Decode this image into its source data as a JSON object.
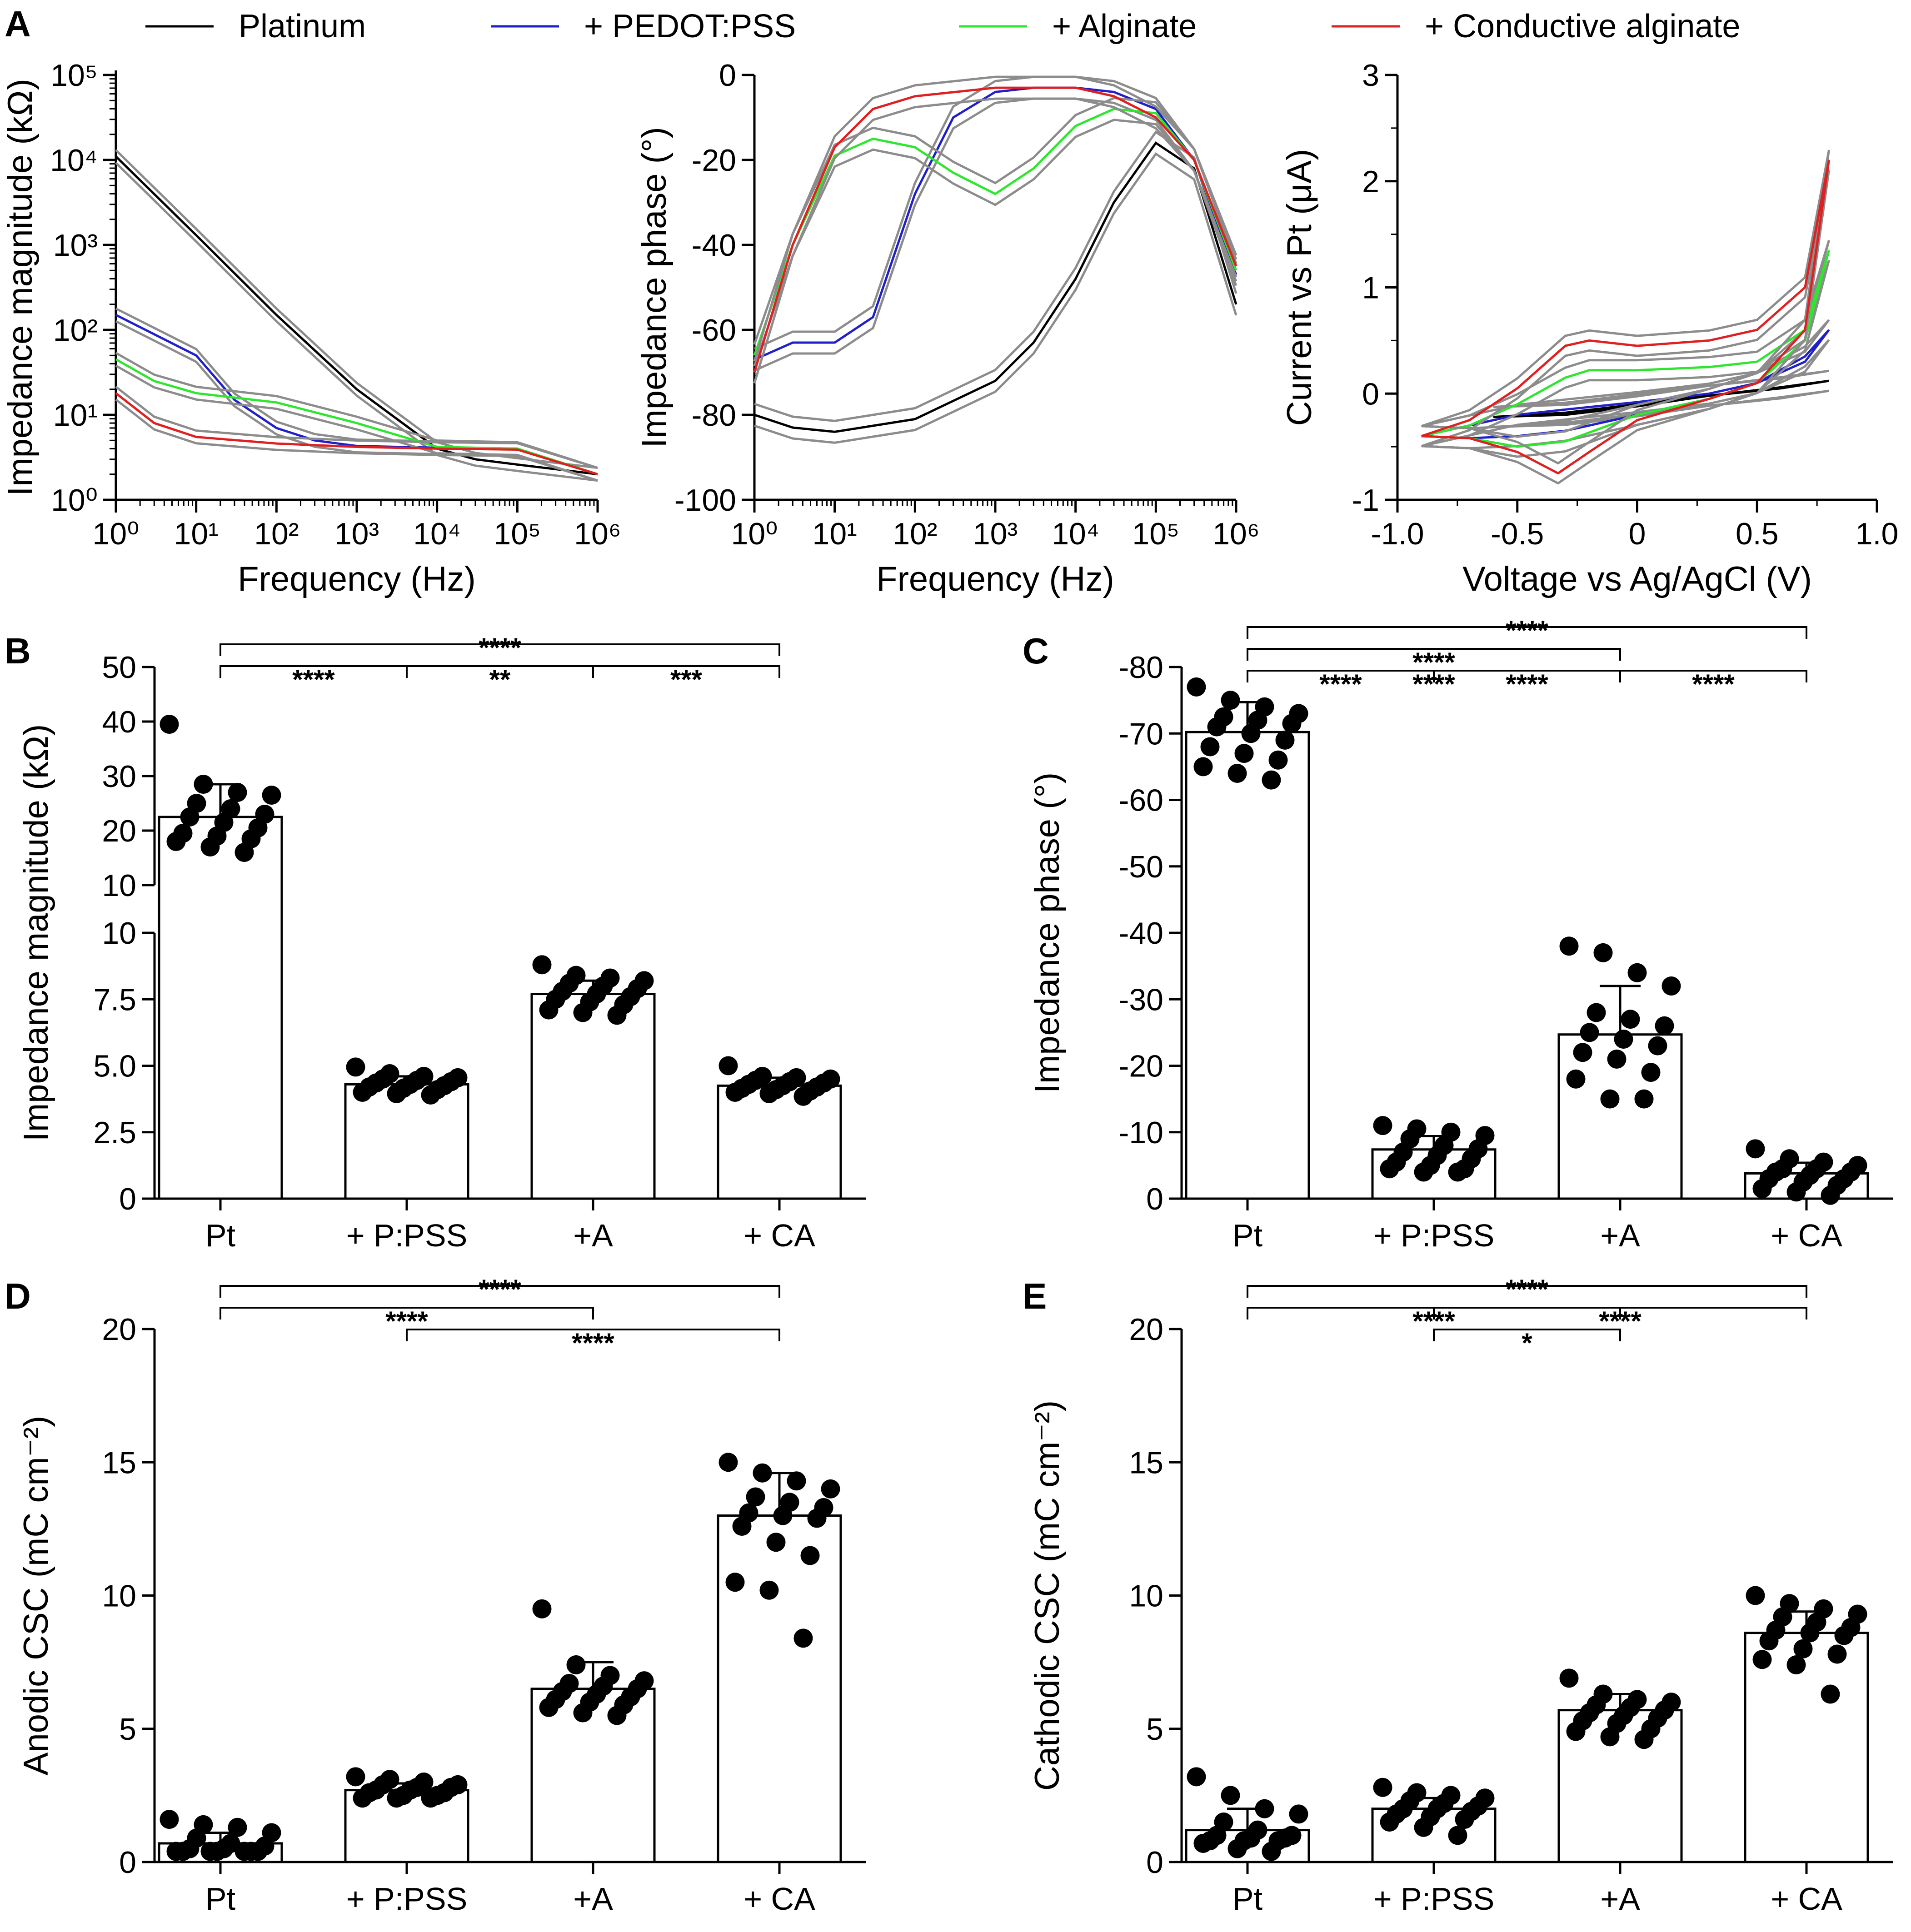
{
  "colors": {
    "platinum": "#000000",
    "pedot": "#1f1fcc",
    "alginate": "#2ee62e",
    "conductive": "#e02020",
    "bound": "#8c8c8c"
  },
  "legend": [
    {
      "label": "Platinum",
      "color": "#000000"
    },
    {
      "label": "+ PEDOT:PSS",
      "color": "#1f1fcc"
    },
    {
      "label": "+ Alginate",
      "color": "#2ee62e"
    },
    {
      "label": "+ Conductive alginate",
      "color": "#e02020"
    }
  ],
  "chart_data": [
    {
      "panel": "A",
      "type": "line",
      "xscale": "log",
      "yscale": "log",
      "xlabel": "Frequency (Hz)",
      "ylabel": "Impedance magnitude (kΩ)",
      "xlim": [
        1,
        1000000
      ],
      "ylim": [
        1,
        100000
      ],
      "x_ticks": [
        "10⁰",
        "10¹",
        "10²",
        "10³",
        "10⁴",
        "10⁵",
        "10⁶"
      ],
      "y_ticks": [
        "10⁰",
        "10¹",
        "10²",
        "10³",
        "10⁴",
        "10⁵"
      ],
      "series": [
        {
          "name": "Platinum",
          "x": [
            1,
            10,
            100,
            1000,
            10000,
            30000,
            100000,
            1000000
          ],
          "y": [
            11000,
            1300,
            150,
            20,
            4,
            3,
            2.6,
            2
          ]
        },
        {
          "name": "+ PEDOT:PSS",
          "x": [
            1,
            10,
            30,
            100,
            300,
            1000,
            10000,
            100000,
            1000000
          ],
          "y": [
            150,
            50,
            15,
            7,
            5,
            4.3,
            4.1,
            4,
            2
          ]
        },
        {
          "name": "+ Alginate",
          "x": [
            1,
            3,
            10,
            100,
            1000,
            10000,
            100000,
            1000000
          ],
          "y": [
            45,
            25,
            18,
            14,
            8,
            4.2,
            4,
            2
          ]
        },
        {
          "name": "+ Conductive alginate",
          "x": [
            1,
            3,
            10,
            100,
            1000,
            10000,
            100000,
            1000000
          ],
          "y": [
            18,
            8,
            5.5,
            4.6,
            4.2,
            4,
            3.9,
            2
          ]
        }
      ]
    },
    {
      "panel": "A2",
      "type": "line",
      "xscale": "log",
      "xlabel": "Frequency (Hz)",
      "ylabel": "Impedance phase (°)",
      "xlim": [
        1,
        1000000
      ],
      "ylim": [
        -100,
        0
      ],
      "x_ticks": [
        "10⁰",
        "10¹",
        "10²",
        "10³",
        "10⁴",
        "10⁵",
        "10⁶"
      ],
      "y_ticks": [
        "-100",
        "-80",
        "-60",
        "-40",
        "-20",
        "0"
      ],
      "series": [
        {
          "name": "Platinum",
          "x": [
            1,
            3,
            10,
            100,
            1000,
            3000,
            10000,
            30000,
            100000,
            300000,
            1000000
          ],
          "y": [
            -80,
            -83,
            -84,
            -81,
            -72,
            -63,
            -48,
            -30,
            -16,
            -22,
            -54
          ]
        },
        {
          "name": "+ PEDOT:PSS",
          "x": [
            1,
            3,
            10,
            30,
            100,
            300,
            1000,
            3000,
            10000,
            30000,
            100000,
            300000,
            1000000
          ],
          "y": [
            -67,
            -63,
            -63,
            -57,
            -28,
            -10,
            -4,
            -3,
            -3,
            -4,
            -8,
            -20,
            -47
          ]
        },
        {
          "name": "+ Alginate",
          "x": [
            1,
            3,
            10,
            30,
            100,
            300,
            1000,
            3000,
            10000,
            30000,
            100000,
            300000,
            1000000
          ],
          "y": [
            -66,
            -40,
            -19,
            -15,
            -17,
            -23,
            -28,
            -22,
            -12,
            -8,
            -9,
            -20,
            -46
          ]
        },
        {
          "name": "+ Conductive alginate",
          "x": [
            1,
            3,
            10,
            30,
            100,
            1000,
            10000,
            30000,
            100000,
            300000,
            1000000
          ],
          "y": [
            -70,
            -40,
            -17,
            -8,
            -5,
            -3,
            -3,
            -5,
            -10,
            -20,
            -45
          ]
        }
      ]
    },
    {
      "panel": "A3",
      "type": "line",
      "xlabel": "Voltage vs Ag/AgCl (V)",
      "ylabel": "Current vs Pt (μA)",
      "xlim": [
        -1.0,
        1.0
      ],
      "ylim": [
        -1,
        3
      ],
      "x_ticks": [
        "-1.0",
        "-0.5",
        "0",
        "0.5",
        "1.0"
      ],
      "y_ticks": [
        "-1",
        "0",
        "1",
        "2",
        "3"
      ],
      "series": [
        {
          "name": "Platinum",
          "x": [
            -0.6,
            -0.3,
            0,
            0.3,
            0.6,
            0.8,
            0.6,
            0.3,
            0,
            -0.3,
            -0.6
          ],
          "y": [
            -0.22,
            -0.2,
            -0.12,
            -0.02,
            0.06,
            0.12,
            0.05,
            -0.02,
            -0.1,
            -0.18,
            -0.22
          ]
        },
        {
          "name": "+ PEDOT:PSS",
          "x": [
            -0.9,
            -0.7,
            -0.5,
            -0.3,
            0,
            0.3,
            0.5,
            0.7,
            0.8,
            0.7,
            0.5,
            0.3,
            0,
            -0.3,
            -0.5,
            -0.7,
            -0.9
          ],
          "y": [
            -0.4,
            -0.3,
            -0.2,
            -0.15,
            -0.08,
            0,
            0.1,
            0.3,
            0.6,
            0.35,
            0.1,
            -0.05,
            -0.2,
            -0.35,
            -0.4,
            -0.42,
            -0.4
          ]
        },
        {
          "name": "+ Alginate",
          "x": [
            -0.9,
            -0.7,
            -0.5,
            -0.3,
            -0.2,
            0,
            0.3,
            0.5,
            0.7,
            0.8,
            0.7,
            0.5,
            0.3,
            0,
            -0.3,
            -0.5,
            -0.7,
            -0.9
          ],
          "y": [
            -0.4,
            -0.3,
            -0.1,
            0.15,
            0.22,
            0.22,
            0.25,
            0.3,
            0.6,
            1.35,
            0.5,
            0.1,
            -0.05,
            -0.2,
            -0.45,
            -0.5,
            -0.42,
            -0.4
          ]
        },
        {
          "name": "+ Conductive alginate",
          "x": [
            -0.9,
            -0.7,
            -0.5,
            -0.3,
            -0.2,
            0,
            0.3,
            0.5,
            0.7,
            0.8,
            0.7,
            0.5,
            0.3,
            0,
            -0.2,
            -0.33,
            -0.5,
            -0.7,
            -0.9
          ],
          "y": [
            -0.4,
            -0.25,
            0.05,
            0.45,
            0.5,
            0.45,
            0.5,
            0.6,
            1.0,
            2.2,
            0.6,
            0.1,
            -0.05,
            -0.25,
            -0.55,
            -0.75,
            -0.55,
            -0.42,
            -0.4
          ]
        }
      ]
    },
    {
      "panel": "B",
      "type": "bar",
      "ylabel": "Impedance magnitude (kΩ)",
      "broken_axis": true,
      "categories": [
        "Pt",
        "+ P:PSS",
        "+A",
        "+ CA"
      ],
      "means": [
        22.5,
        4.3,
        7.7,
        4.25
      ],
      "sd": [
        6,
        0.3,
        0.5,
        0.3
      ],
      "points": [
        [
          39.5,
          28.5,
          27,
          26.5,
          25,
          24,
          23,
          22.5,
          21.5,
          20.5,
          19.5,
          19,
          18.5,
          18,
          17,
          16
        ],
        [
          4.95,
          4.7,
          4.6,
          4.55,
          4.5,
          4.45,
          4.4,
          4.35,
          4.3,
          4.25,
          4.2,
          4.15,
          4.1,
          4.0,
          3.95,
          3.9
        ],
        [
          8.8,
          8.4,
          8.3,
          8.2,
          8.1,
          8.0,
          7.9,
          7.8,
          7.7,
          7.6,
          7.5,
          7.4,
          7.3,
          7.1,
          7.0,
          6.9
        ],
        [
          5.0,
          4.6,
          4.55,
          4.5,
          4.45,
          4.4,
          4.35,
          4.3,
          4.25,
          4.2,
          4.15,
          4.1,
          4.05,
          4.0,
          3.95,
          3.85
        ]
      ],
      "upper_ticks": [
        "10",
        "20",
        "30",
        "40",
        "50"
      ],
      "lower_ticks": [
        "0",
        "2.5",
        "5.0",
        "7.5",
        "10"
      ],
      "significance": [
        {
          "from": 0,
          "to": 3,
          "level": 0,
          "label": "****"
        },
        {
          "from": 0,
          "to": 1,
          "level": 1,
          "label": "****"
        },
        {
          "from": 1,
          "to": 2,
          "level": 1,
          "label": "**"
        },
        {
          "from": 2,
          "to": 3,
          "level": 1,
          "label": "***"
        }
      ]
    },
    {
      "panel": "C",
      "type": "bar",
      "ylabel": "Impedance phase (°)",
      "ylim": [
        0,
        -80
      ],
      "categories": [
        "Pt",
        "+ P:PSS",
        "+A",
        "+ CA"
      ],
      "y_ticks": [
        "0",
        "-10",
        "-20",
        "-30",
        "-40",
        "-50",
        "-60",
        "-70",
        "-80"
      ],
      "means": [
        -70.2,
        -7.4,
        -24.7,
        -3.8
      ],
      "sd": [
        4.5,
        2,
        7.3,
        1.6
      ],
      "points": [
        [
          -77,
          -75,
          -74,
          -73,
          -72.5,
          -72,
          -71.5,
          -71,
          -70,
          -69,
          -68,
          -67,
          -66,
          -65,
          -64,
          -63
        ],
        [
          -11,
          -10.5,
          -10,
          -9.5,
          -9,
          -8,
          -7.5,
          -7,
          -6.5,
          -6,
          -5.5,
          -5,
          -4.5,
          -4.5,
          -4,
          -4
        ],
        [
          -38,
          -37,
          -34,
          -32,
          -28,
          -27,
          -26,
          -25,
          -24,
          -23,
          -22,
          -21,
          -19,
          -18,
          -15,
          -15
        ],
        [
          -7.5,
          -6,
          -5.5,
          -5,
          -4.5,
          -4.5,
          -4,
          -4,
          -3.5,
          -3,
          -3,
          -2.5,
          -2,
          -1.5,
          -1,
          -0.5
        ]
      ],
      "significance": [
        {
          "from": 0,
          "to": 3,
          "level": 0,
          "label": "****"
        },
        {
          "from": 0,
          "to": 2,
          "level": 1,
          "label": "****"
        },
        {
          "from": 0,
          "to": 2,
          "level": 2,
          "label": "****"
        },
        {
          "from": 0,
          "to": 1,
          "level": 2,
          "label": "****"
        },
        {
          "from": 1,
          "to": 2,
          "level": 2,
          "label": "****"
        },
        {
          "from": 2,
          "to": 3,
          "level": 2,
          "label": "****"
        }
      ]
    },
    {
      "panel": "D",
      "type": "bar",
      "ylabel": "Anodic CSC (mC cm⁻²)",
      "ylim": [
        0,
        20
      ],
      "categories": [
        "Pt",
        "+ P:PSS",
        "+A",
        "+ CA"
      ],
      "y_ticks": [
        "0",
        "5",
        "10",
        "15",
        "20"
      ],
      "means": [
        0.7,
        2.7,
        6.5,
        13
      ],
      "sd": [
        0.4,
        0.25,
        1.0,
        1.6
      ],
      "points": [
        [
          1.6,
          1.4,
          1.3,
          1.1,
          0.9,
          0.7,
          0.6,
          0.5,
          0.5,
          0.4,
          0.4,
          0.4,
          0.4,
          0.4,
          0.4,
          0.4
        ],
        [
          3.2,
          3.1,
          3.0,
          2.9,
          2.9,
          2.8,
          2.8,
          2.7,
          2.7,
          2.6,
          2.6,
          2.5,
          2.5,
          2.4,
          2.4,
          2.4
        ],
        [
          9.5,
          7.4,
          7.0,
          6.8,
          6.7,
          6.6,
          6.5,
          6.4,
          6.3,
          6.2,
          6.1,
          6.0,
          5.9,
          5.8,
          5.6,
          5.5
        ],
        [
          15,
          14.6,
          14.3,
          14,
          13.7,
          13.5,
          13.3,
          13.1,
          13,
          12.9,
          12.6,
          12,
          11.5,
          10.5,
          10.2,
          8.4
        ]
      ],
      "significance": [
        {
          "from": 0,
          "to": 3,
          "level": 0,
          "label": "****"
        },
        {
          "from": 0,
          "to": 2,
          "level": 1,
          "label": "****"
        },
        {
          "from": 1,
          "to": 3,
          "level": 2,
          "label": "****"
        }
      ]
    },
    {
      "panel": "E",
      "type": "bar",
      "ylabel": "Cathodic CSC (mC cm⁻²)",
      "ylim": [
        0,
        20
      ],
      "categories": [
        "Pt",
        "+ P:PSS",
        "+A",
        "+ CA"
      ],
      "y_ticks": [
        "0",
        "5",
        "10",
        "15",
        "20"
      ],
      "means": [
        1.2,
        2.0,
        5.7,
        8.6
      ],
      "sd": [
        0.8,
        0.4,
        0.6,
        0.8
      ],
      "points": [
        [
          3.2,
          2.5,
          2.0,
          1.8,
          1.5,
          1.2,
          1.0,
          1.0,
          0.9,
          0.9,
          0.8,
          0.8,
          0.8,
          0.7,
          0.5,
          0.4
        ],
        [
          2.8,
          2.6,
          2.5,
          2.4,
          2.3,
          2.2,
          2.1,
          2.0,
          2.0,
          1.9,
          1.8,
          1.7,
          1.6,
          1.5,
          1.3,
          1.0
        ],
        [
          6.9,
          6.3,
          6.1,
          6.0,
          5.9,
          5.8,
          5.7,
          5.6,
          5.5,
          5.4,
          5.3,
          5.2,
          5.0,
          4.9,
          4.7,
          4.6
        ],
        [
          10,
          9.7,
          9.5,
          9.3,
          9.2,
          9.0,
          8.8,
          8.7,
          8.6,
          8.5,
          8.3,
          8.0,
          7.8,
          7.6,
          7.4,
          6.3
        ]
      ],
      "significance": [
        {
          "from": 0,
          "to": 3,
          "level": 0,
          "label": "****"
        },
        {
          "from": 0,
          "to": 2,
          "level": 1,
          "label": "****"
        },
        {
          "from": 1,
          "to": 3,
          "level": 1,
          "label": "****"
        },
        {
          "from": 1,
          "to": 2,
          "level": 2,
          "label": "*"
        }
      ]
    }
  ]
}
